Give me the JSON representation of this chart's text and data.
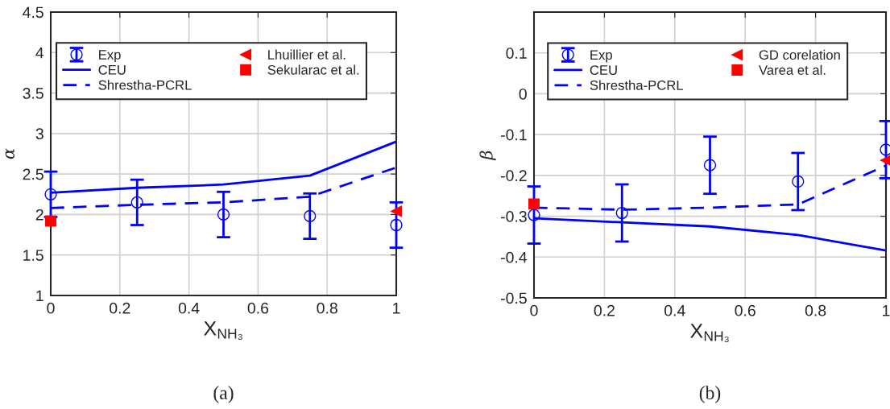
{
  "chart_data": [
    {
      "type": "line",
      "xlabel": "X$_{NH₃}$",
      "ylabel": "α",
      "xlim": [
        0,
        1
      ],
      "ylim": [
        1,
        4.5
      ],
      "xticks": [
        0,
        0.2,
        0.4,
        0.6,
        0.8,
        1
      ],
      "yticks": [
        1,
        1.5,
        2,
        2.5,
        3,
        3.5,
        4,
        4.5
      ],
      "grid": true,
      "legend": "top",
      "annotations": [
        "(a)"
      ],
      "series": [
        {
          "name": "Exp",
          "type": "scatter",
          "marker": "circle",
          "color": "#0000ff",
          "x": [
            0,
            0.25,
            0.5,
            0.75,
            1
          ],
          "values": [
            2.25,
            2.15,
            2.0,
            1.98,
            1.87
          ],
          "errors": [
            0.28,
            0.28,
            0.28,
            0.28,
            0.28
          ]
        },
        {
          "name": "CEU",
          "line_style": "solid",
          "color": "#0000ff",
          "x": [
            0,
            0.25,
            0.5,
            0.75,
            1
          ],
          "values": [
            2.27,
            2.33,
            2.37,
            2.48,
            2.9
          ]
        },
        {
          "name": "Shrestha-PCRL",
          "line_style": "dashed",
          "color": "#0000ff",
          "x": [
            0,
            0.25,
            0.5,
            0.75,
            1
          ],
          "values": [
            2.08,
            2.12,
            2.15,
            2.22,
            2.58
          ]
        },
        {
          "name": "Lhuillier et al.",
          "type": "scatter",
          "marker": "triangle",
          "color": "#ff0000",
          "x": [
            1
          ],
          "values": [
            2.04
          ]
        },
        {
          "name": "Sekularac et al.",
          "type": "scatter",
          "marker": "square",
          "color": "#ff0000",
          "x": [
            0
          ],
          "values": [
            1.92
          ]
        }
      ]
    },
    {
      "type": "line",
      "xlabel": "X$_{NH₃}$",
      "ylabel": "β",
      "xlim": [
        0,
        1
      ],
      "ylim": [
        -0.5,
        0.2
      ],
      "xticks": [
        0,
        0.2,
        0.4,
        0.6,
        0.8,
        1
      ],
      "yticks": [
        -0.5,
        -0.4,
        -0.3,
        -0.2,
        -0.1,
        0,
        0.1
      ],
      "grid": true,
      "legend": "top",
      "annotations": [
        "(b)"
      ],
      "series": [
        {
          "name": "Exp",
          "type": "scatter",
          "marker": "circle",
          "color": "#0000ff",
          "x": [
            0,
            0.25,
            0.5,
            0.75,
            1
          ],
          "values": [
            -0.297,
            -0.292,
            -0.175,
            -0.215,
            -0.137
          ],
          "errors": [
            0.07,
            0.07,
            0.07,
            0.07,
            0.07
          ]
        },
        {
          "name": "CEU",
          "line_style": "solid",
          "color": "#0000ff",
          "x": [
            0,
            0.25,
            0.5,
            0.75,
            1
          ],
          "values": [
            -0.305,
            -0.315,
            -0.325,
            -0.346,
            -0.384
          ]
        },
        {
          "name": "Shrestha-PCRL",
          "line_style": "dashed",
          "color": "#0000ff",
          "x": [
            0,
            0.25,
            0.5,
            0.75,
            1
          ],
          "values": [
            -0.279,
            -0.284,
            -0.279,
            -0.271,
            -0.176
          ]
        },
        {
          "name": "GD corelation",
          "type": "scatter",
          "marker": "triangle",
          "color": "#ff0000",
          "x": [
            1
          ],
          "values": [
            -0.163
          ]
        },
        {
          "name": "Varea et al.",
          "type": "scatter",
          "marker": "square",
          "color": "#ff0000",
          "x": [
            0
          ],
          "values": [
            -0.27
          ]
        }
      ]
    }
  ]
}
